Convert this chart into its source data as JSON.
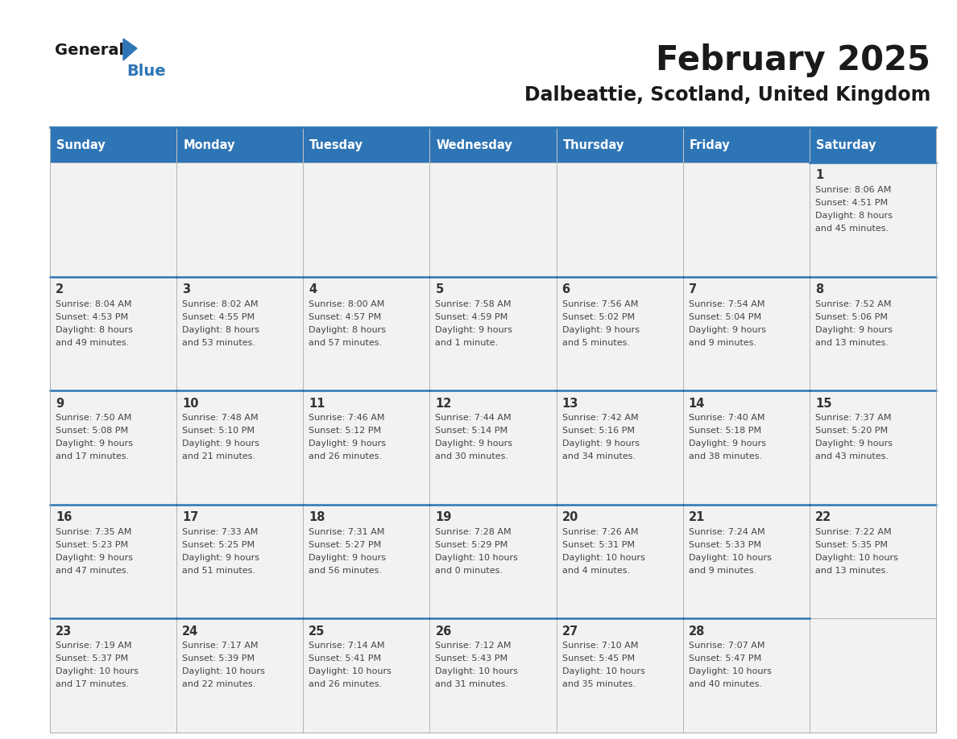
{
  "title": "February 2025",
  "subtitle": "Dalbeattie, Scotland, United Kingdom",
  "header_color": "#2E75B6",
  "header_text_color": "#FFFFFF",
  "cell_bg_color": "#F2F2F2",
  "border_color": "#2E75B6",
  "thin_border_color": "#AAAAAA",
  "day_text_color": "#333333",
  "info_text_color": "#444444",
  "days_of_week": [
    "Sunday",
    "Monday",
    "Tuesday",
    "Wednesday",
    "Thursday",
    "Friday",
    "Saturday"
  ],
  "calendar": [
    [
      null,
      null,
      null,
      null,
      null,
      null,
      {
        "day": 1,
        "sunrise": "8:06 AM",
        "sunset": "4:51 PM",
        "daylight": "8 hours\nand 45 minutes."
      }
    ],
    [
      {
        "day": 2,
        "sunrise": "8:04 AM",
        "sunset": "4:53 PM",
        "daylight": "8 hours\nand 49 minutes."
      },
      {
        "day": 3,
        "sunrise": "8:02 AM",
        "sunset": "4:55 PM",
        "daylight": "8 hours\nand 53 minutes."
      },
      {
        "day": 4,
        "sunrise": "8:00 AM",
        "sunset": "4:57 PM",
        "daylight": "8 hours\nand 57 minutes."
      },
      {
        "day": 5,
        "sunrise": "7:58 AM",
        "sunset": "4:59 PM",
        "daylight": "9 hours\nand 1 minute."
      },
      {
        "day": 6,
        "sunrise": "7:56 AM",
        "sunset": "5:02 PM",
        "daylight": "9 hours\nand 5 minutes."
      },
      {
        "day": 7,
        "sunrise": "7:54 AM",
        "sunset": "5:04 PM",
        "daylight": "9 hours\nand 9 minutes."
      },
      {
        "day": 8,
        "sunrise": "7:52 AM",
        "sunset": "5:06 PM",
        "daylight": "9 hours\nand 13 minutes."
      }
    ],
    [
      {
        "day": 9,
        "sunrise": "7:50 AM",
        "sunset": "5:08 PM",
        "daylight": "9 hours\nand 17 minutes."
      },
      {
        "day": 10,
        "sunrise": "7:48 AM",
        "sunset": "5:10 PM",
        "daylight": "9 hours\nand 21 minutes."
      },
      {
        "day": 11,
        "sunrise": "7:46 AM",
        "sunset": "5:12 PM",
        "daylight": "9 hours\nand 26 minutes."
      },
      {
        "day": 12,
        "sunrise": "7:44 AM",
        "sunset": "5:14 PM",
        "daylight": "9 hours\nand 30 minutes."
      },
      {
        "day": 13,
        "sunrise": "7:42 AM",
        "sunset": "5:16 PM",
        "daylight": "9 hours\nand 34 minutes."
      },
      {
        "day": 14,
        "sunrise": "7:40 AM",
        "sunset": "5:18 PM",
        "daylight": "9 hours\nand 38 minutes."
      },
      {
        "day": 15,
        "sunrise": "7:37 AM",
        "sunset": "5:20 PM",
        "daylight": "9 hours\nand 43 minutes."
      }
    ],
    [
      {
        "day": 16,
        "sunrise": "7:35 AM",
        "sunset": "5:23 PM",
        "daylight": "9 hours\nand 47 minutes."
      },
      {
        "day": 17,
        "sunrise": "7:33 AM",
        "sunset": "5:25 PM",
        "daylight": "9 hours\nand 51 minutes."
      },
      {
        "day": 18,
        "sunrise": "7:31 AM",
        "sunset": "5:27 PM",
        "daylight": "9 hours\nand 56 minutes."
      },
      {
        "day": 19,
        "sunrise": "7:28 AM",
        "sunset": "5:29 PM",
        "daylight": "10 hours\nand 0 minutes."
      },
      {
        "day": 20,
        "sunrise": "7:26 AM",
        "sunset": "5:31 PM",
        "daylight": "10 hours\nand 4 minutes."
      },
      {
        "day": 21,
        "sunrise": "7:24 AM",
        "sunset": "5:33 PM",
        "daylight": "10 hours\nand 9 minutes."
      },
      {
        "day": 22,
        "sunrise": "7:22 AM",
        "sunset": "5:35 PM",
        "daylight": "10 hours\nand 13 minutes."
      }
    ],
    [
      {
        "day": 23,
        "sunrise": "7:19 AM",
        "sunset": "5:37 PM",
        "daylight": "10 hours\nand 17 minutes."
      },
      {
        "day": 24,
        "sunrise": "7:17 AM",
        "sunset": "5:39 PM",
        "daylight": "10 hours\nand 22 minutes."
      },
      {
        "day": 25,
        "sunrise": "7:14 AM",
        "sunset": "5:41 PM",
        "daylight": "10 hours\nand 26 minutes."
      },
      {
        "day": 26,
        "sunrise": "7:12 AM",
        "sunset": "5:43 PM",
        "daylight": "10 hours\nand 31 minutes."
      },
      {
        "day": 27,
        "sunrise": "7:10 AM",
        "sunset": "5:45 PM",
        "daylight": "10 hours\nand 35 minutes."
      },
      {
        "day": 28,
        "sunrise": "7:07 AM",
        "sunset": "5:47 PM",
        "daylight": "10 hours\nand 40 minutes."
      },
      null
    ]
  ]
}
